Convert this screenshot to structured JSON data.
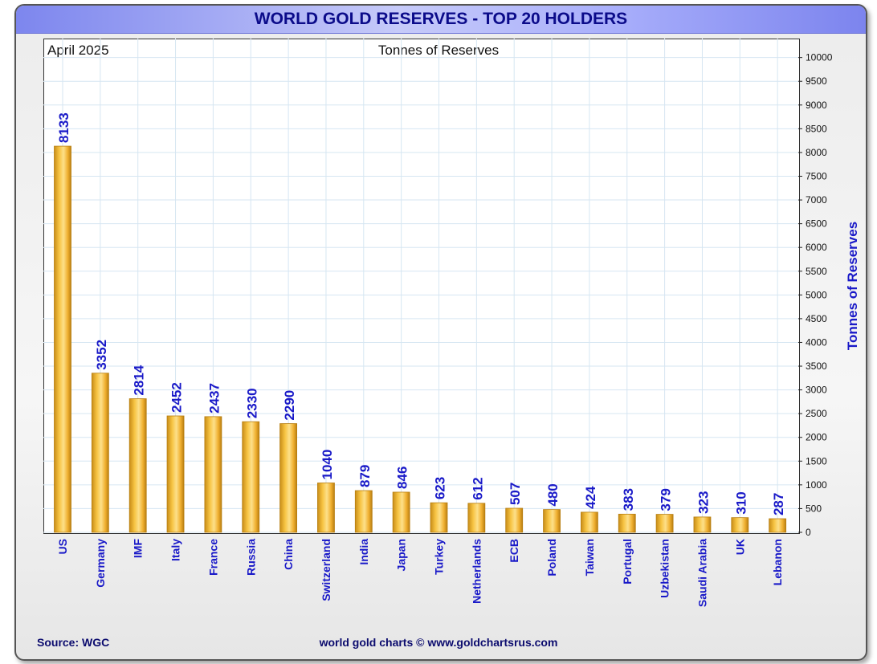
{
  "colors": {
    "title_text": "#0b0b8a",
    "label_blue": "#1919c8",
    "bar_gold": "#f4b836",
    "bar_edge": "#b77e10",
    "grid": "#d6e6f2"
  },
  "header": {
    "title": "WORLD GOLD RESERVES - TOP 20 HOLDERS",
    "date": "April 2025",
    "units": "Tonnes of Reserves"
  },
  "footer": {
    "source": "Source: WGC",
    "credit": "world gold charts © www.goldchartsrus.com"
  },
  "chart_data": {
    "type": "bar",
    "title": "WORLD GOLD RESERVES - TOP 20 HOLDERS",
    "subtitle": "Tonnes of Reserves",
    "ylabel": "Tonnes of Reserves",
    "xlabel": "",
    "ylim": [
      0,
      10400
    ],
    "yticks": [
      0,
      500,
      1000,
      1500,
      2000,
      2500,
      3000,
      3500,
      4000,
      4500,
      5000,
      5500,
      6000,
      6500,
      7000,
      7500,
      8000,
      8500,
      9000,
      9500,
      10000
    ],
    "y_axis_side": "right",
    "grid": true,
    "categories": [
      "US",
      "Germany",
      "IMF",
      "Italy",
      "France",
      "Russia",
      "China",
      "Switzerland",
      "India",
      "Japan",
      "Turkey",
      "Netherlands",
      "ECB",
      "Poland",
      "Taiwan",
      "Portugal",
      "Uzbekistan",
      "Saudi Arabia",
      "UK",
      "Lebanon"
    ],
    "values": [
      8133,
      3352,
      2814,
      2452,
      2437,
      2330,
      2290,
      1040,
      879,
      846,
      623,
      612,
      507,
      480,
      424,
      383,
      379,
      323,
      310,
      287
    ],
    "data_labels": [
      "8133",
      "3352",
      "2814",
      "2452",
      "2437",
      "2330",
      "2290",
      "1040",
      "879",
      "846",
      "623",
      "612",
      "507",
      "480",
      "424",
      "383",
      "379",
      "323",
      "310",
      "287"
    ]
  }
}
